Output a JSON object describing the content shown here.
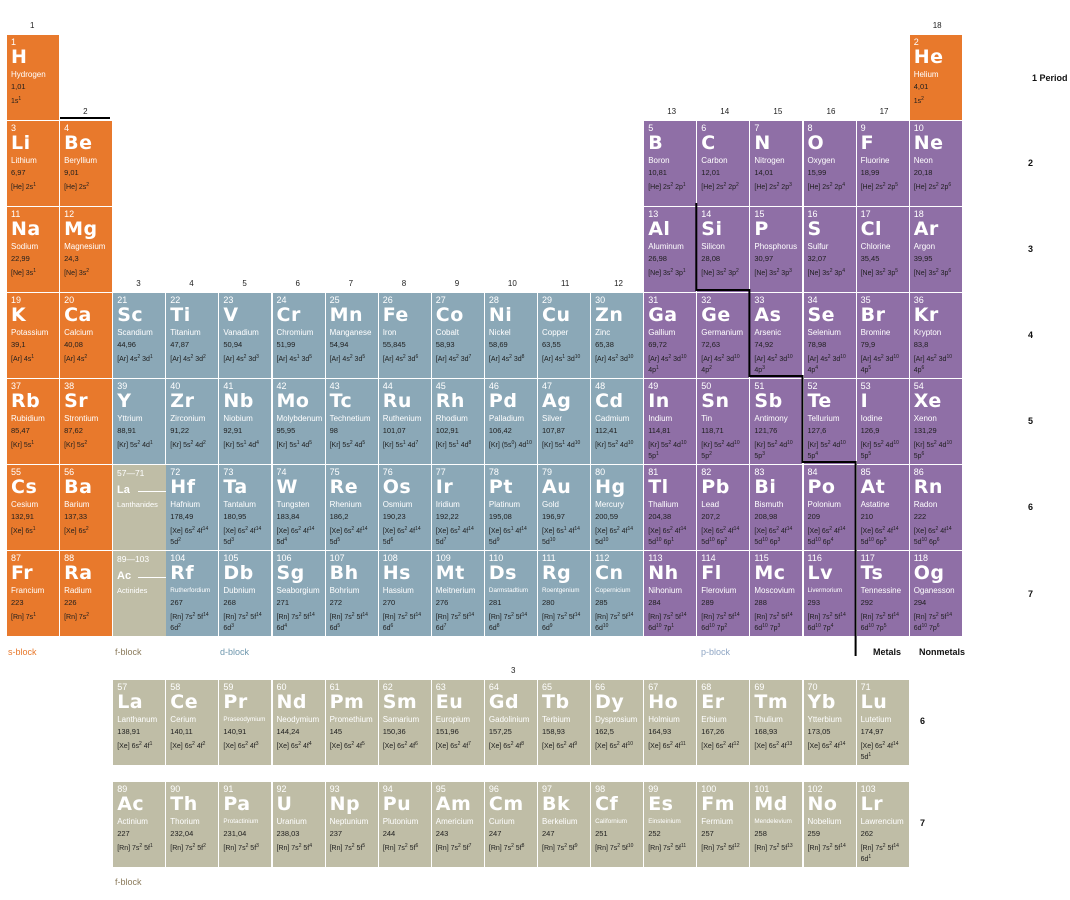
{
  "colors": {
    "s-block": "#e8792c",
    "d-block": "#8ba8b7",
    "p-block": "#8f6fa6",
    "f-block": "#bfbda6"
  },
  "group_labels": [
    "1",
    "2",
    "3",
    "4",
    "5",
    "6",
    "7",
    "8",
    "9",
    "10",
    "11",
    "12",
    "13",
    "14",
    "15",
    "16",
    "17",
    "18"
  ],
  "period_labels": [
    "1 Period",
    "2",
    "3",
    "4",
    "5",
    "6",
    "7"
  ],
  "f_period_labels": [
    "6",
    "7"
  ],
  "f_group_label": "3",
  "block_labels": {
    "s": "s-block",
    "f": "f-block",
    "d": "d-block",
    "p": "p-block",
    "f2": "f-block"
  },
  "metals_label": "Metals",
  "nonmetals_label": "Nonmetals",
  "series": {
    "lanthanides": {
      "range": "57—71",
      "from": "La",
      "to": "Lu",
      "name": "Lanthanides"
    },
    "actinides": {
      "range": "89—103",
      "from": "Ac",
      "to": "Lr",
      "name": "Actinides"
    }
  },
  "elements": [
    [
      "1",
      "H",
      "Hydrogen",
      "1,01",
      "1s^1^",
      "s",
      1,
      1
    ],
    [
      "2",
      "He",
      "Helium",
      "4,01",
      "1s^2^",
      "s",
      18,
      1
    ],
    [
      "3",
      "Li",
      "Lithium",
      "6,97",
      "[He] 2s^1^",
      "s",
      1,
      2
    ],
    [
      "4",
      "Be",
      "Beryllium",
      "9,01",
      "[He] 2s^2^",
      "s",
      2,
      2
    ],
    [
      "5",
      "B",
      "Boron",
      "10,81",
      "[He] 2s^2^ 2p^1^",
      "p",
      13,
      2
    ],
    [
      "6",
      "C",
      "Carbon",
      "12,01",
      "[He] 2s^2^ 2p^2^",
      "p",
      14,
      2
    ],
    [
      "7",
      "N",
      "Nitrogen",
      "14,01",
      "[He] 2s^2^ 2p^3^",
      "p",
      15,
      2
    ],
    [
      "8",
      "O",
      "Oxygen",
      "15,99",
      "[He] 2s^2^ 2p^4^",
      "p",
      16,
      2
    ],
    [
      "9",
      "F",
      "Fluorine",
      "18,99",
      "[He] 2s^2^ 2p^5^",
      "p",
      17,
      2
    ],
    [
      "10",
      "Ne",
      "Neon",
      "20,18",
      "[He] 2s^2^ 2p^6^",
      "p",
      18,
      2
    ],
    [
      "11",
      "Na",
      "Sodium",
      "22,99",
      "[Ne] 3s^1^",
      "s",
      1,
      3
    ],
    [
      "12",
      "Mg",
      "Magnesium",
      "24,3",
      "[Ne] 3s^2^",
      "s",
      2,
      3
    ],
    [
      "13",
      "Al",
      "Aluminum",
      "26,98",
      "[Ne] 3s^2^ 3p^1^",
      "p",
      13,
      3
    ],
    [
      "14",
      "Si",
      "Silicon",
      "28,08",
      "[Ne] 3s^2^ 3p^2^",
      "p",
      14,
      3
    ],
    [
      "15",
      "P",
      "Phosphorus",
      "30,97",
      "[Ne] 3s^2^ 3p^3^",
      "p",
      15,
      3
    ],
    [
      "16",
      "S",
      "Sulfur",
      "32,07",
      "[Ne] 3s^2^ 3p^4^",
      "p",
      16,
      3
    ],
    [
      "17",
      "Cl",
      "Chlorine",
      "35,45",
      "[Ne] 3s^2^ 3p^5^",
      "p",
      17,
      3
    ],
    [
      "18",
      "Ar",
      "Argon",
      "39,95",
      "[Ne] 3s^2^ 3p^6^",
      "p",
      18,
      3
    ],
    [
      "19",
      "K",
      "Potassium",
      "39,1",
      "[Ar] 4s^1^",
      "s",
      1,
      4
    ],
    [
      "20",
      "Ca",
      "Calcium",
      "40,08",
      "[Ar] 4s^2^",
      "s",
      2,
      4
    ],
    [
      "21",
      "Sc",
      "Scandium",
      "44,96",
      "[Ar] 4s^2^ 3d^1^",
      "d",
      3,
      4
    ],
    [
      "22",
      "Ti",
      "Titanium",
      "47,87",
      "[Ar] 4s^2^ 3d^2^",
      "d",
      4,
      4
    ],
    [
      "23",
      "V",
      "Vanadium",
      "50,94",
      "[Ar] 4s^2^ 3d^3^",
      "d",
      5,
      4
    ],
    [
      "24",
      "Cr",
      "Chromium",
      "51,99",
      "[Ar] 4s^1^ 3d^5^",
      "d",
      6,
      4
    ],
    [
      "25",
      "Mn",
      "Manganese",
      "54,94",
      "[Ar] 4s^2^ 3d^5^",
      "d",
      7,
      4
    ],
    [
      "26",
      "Fe",
      "Iron",
      "55,845",
      "[Ar] 4s^2^ 3d^6^",
      "d",
      8,
      4
    ],
    [
      "27",
      "Co",
      "Cobalt",
      "58,93",
      "[Ar] 4s^2^ 3d^7^",
      "d",
      9,
      4
    ],
    [
      "28",
      "Ni",
      "Nickel",
      "58,69",
      "[Ar] 4s^2^ 3d^8^",
      "d",
      10,
      4
    ],
    [
      "29",
      "Cu",
      "Copper",
      "63,55",
      "[Ar] 4s^1^ 3d^10^",
      "d",
      11,
      4
    ],
    [
      "30",
      "Zn",
      "Zinc",
      "65,38",
      "[Ar] 4s^2^ 3d^10^",
      "d",
      12,
      4
    ],
    [
      "31",
      "Ga",
      "Gallium",
      "69,72",
      "[Ar] 4s^2^ 3d^10^|4p^1^",
      "p",
      13,
      4
    ],
    [
      "32",
      "Ge",
      "Germanium",
      "72,63",
      "[Ar] 4s^2^ 3d^10^|4p^2^",
      "p",
      14,
      4
    ],
    [
      "33",
      "As",
      "Arsenic",
      "74,92",
      "[Ar] 4s^2^ 3d^10^|4p^3^",
      "p",
      15,
      4
    ],
    [
      "34",
      "Se",
      "Selenium",
      "78,98",
      "[Ar] 4s^2^ 3d^10^|4p^4^",
      "p",
      16,
      4
    ],
    [
      "35",
      "Br",
      "Bromine",
      "79,9",
      "[Ar] 4s^2^ 3d^10^|4p^5^",
      "p",
      17,
      4
    ],
    [
      "36",
      "Kr",
      "Krypton",
      "83,8",
      "[Ar] 4s^2^ 3d^10^|4p^6^",
      "p",
      18,
      4
    ],
    [
      "37",
      "Rb",
      "Rubidium",
      "85,47",
      "[Kr] 5s^1^",
      "s",
      1,
      5
    ],
    [
      "38",
      "Sr",
      "Strontium",
      "87,62",
      "[Kr] 5s^2^",
      "s",
      2,
      5
    ],
    [
      "39",
      "Y",
      "Yttrium",
      "88,91",
      "[Kr] 5s^2^ 4d^1^",
      "d",
      3,
      5
    ],
    [
      "40",
      "Zr",
      "Zirconium",
      "91,22",
      "[Kr] 5s^2^ 4d^2^",
      "d",
      4,
      5
    ],
    [
      "41",
      "Nb",
      "Niobium",
      "92,91",
      "[Kr] 5s^1^ 4d^4^",
      "d",
      5,
      5
    ],
    [
      "42",
      "Mo",
      "Molybdenum",
      "95,95",
      "[Kr] 5s^1^ 4d^5^",
      "d",
      6,
      5
    ],
    [
      "43",
      "Tc",
      "Technetium",
      "98",
      "[Kr] 5s^2^ 4d^5^",
      "d",
      7,
      5
    ],
    [
      "44",
      "Ru",
      "Ruthenium",
      "101,07",
      "[Kr] 5s^1^ 4d^7^",
      "d",
      8,
      5
    ],
    [
      "45",
      "Rh",
      "Rhodium",
      "102,91",
      "[Kr] 5s^1^ 4d^8^",
      "d",
      9,
      5
    ],
    [
      "46",
      "Pd",
      "Palladium",
      "106,42",
      "[Kr] (5s^0^) 4d^10^",
      "d",
      10,
      5
    ],
    [
      "47",
      "Ag",
      "Silver",
      "107,87",
      "[Kr] 5s^1^ 4d^10^",
      "d",
      11,
      5
    ],
    [
      "48",
      "Cd",
      "Cadmium",
      "112,41",
      "[Kr] 5s^2^ 4d^10^",
      "d",
      12,
      5
    ],
    [
      "49",
      "In",
      "Indium",
      "114,81",
      "[Kr] 5s^2^ 4d^10^|5p^1^",
      "p",
      13,
      5
    ],
    [
      "50",
      "Sn",
      "Tin",
      "118,71",
      "[Kr] 5s^2^ 4d^10^|5p^2^",
      "p",
      14,
      5
    ],
    [
      "51",
      "Sb",
      "Antimony",
      "121,76",
      "[Kr] 5s^2^ 4d^10^|5p^3^",
      "p",
      15,
      5
    ],
    [
      "52",
      "Te",
      "Tellurium",
      "127,6",
      "[Kr] 5s^2^ 4d^10^|5p^4^",
      "p",
      16,
      5
    ],
    [
      "53",
      "I",
      "Iodine",
      "126,9",
      "[Kr] 5s^2^ 4d^10^|5p^5^",
      "p",
      17,
      5
    ],
    [
      "54",
      "Xe",
      "Xenon",
      "131,29",
      "[Kr] 5s^2^ 4d^10^|5p^6^",
      "p",
      18,
      5
    ],
    [
      "55",
      "Cs",
      "Cesium",
      "132,91",
      "[Xe] 6s^1^",
      "s",
      1,
      6
    ],
    [
      "56",
      "Ba",
      "Barium",
      "137,33",
      "[Xe] 6s^2^",
      "s",
      2,
      6
    ],
    [
      "72",
      "Hf",
      "Hafnium",
      "178,49",
      "[Xe] 6s^2^ 4f^14^|5d^2^",
      "d",
      4,
      6
    ],
    [
      "73",
      "Ta",
      "Tantalum",
      "180,95",
      "[Xe] 6s^2^ 4f^14^|5d^3^",
      "d",
      5,
      6
    ],
    [
      "74",
      "W",
      "Tungsten",
      "183,84",
      "[Xe] 6s^2^ 4f^14^|5d^4^",
      "d",
      6,
      6
    ],
    [
      "75",
      "Re",
      "Rhenium",
      "186,2",
      "[Xe] 6s^2^ 4f^14^|5d^5^",
      "d",
      7,
      6
    ],
    [
      "76",
      "Os",
      "Osmium",
      "190,23",
      "[Xe] 6s^2^ 4f^14^|5d^6^",
      "d",
      8,
      6
    ],
    [
      "77",
      "Ir",
      "Iridium",
      "192,22",
      "[Xe] 6s^2^ 4f^14^|5d^7^",
      "d",
      9,
      6
    ],
    [
      "78",
      "Pt",
      "Platinum",
      "195,08",
      "[Xe] 6s^1^ 4f^14^|5d^9^",
      "d",
      10,
      6
    ],
    [
      "79",
      "Au",
      "Gold",
      "196,97",
      "[Xe] 6s^1^ 4f^14^|5d^10^",
      "d",
      11,
      6
    ],
    [
      "80",
      "Hg",
      "Mercury",
      "200,59",
      "[Xe] 6s^2^ 4f^14^|5d^10^",
      "d",
      12,
      6
    ],
    [
      "81",
      "Tl",
      "Thallium",
      "204,38",
      "[Xe] 6s^2^ 4f^14^|5d^10^ 6p^1^",
      "p",
      13,
      6
    ],
    [
      "82",
      "Pb",
      "Lead",
      "207,2",
      "[Xe] 6s^2^ 4f^14^|5d^10^ 6p^2^",
      "p",
      14,
      6
    ],
    [
      "83",
      "Bi",
      "Bismuth",
      "208,98",
      "[Xe] 6s^2^ 4f^14^|5d^10^ 6p^3^",
      "p",
      15,
      6
    ],
    [
      "84",
      "Po",
      "Polonium",
      "209",
      "[Xe] 6s^2^ 4f^14^|5d^10^ 6p^4^",
      "p",
      16,
      6
    ],
    [
      "85",
      "At",
      "Astatine",
      "210",
      "[Xe] 6s^2^ 4f^14^|5d^10^ 6p^5^",
      "p",
      17,
      6
    ],
    [
      "86",
      "Rn",
      "Radon",
      "222",
      "[Xe] 6s^2^ 4f^14^|5d^10^ 6p^6^",
      "p",
      18,
      6
    ],
    [
      "87",
      "Fr",
      "Francium",
      "223",
      "[Rn] 7s^1^",
      "s",
      1,
      7
    ],
    [
      "88",
      "Ra",
      "Radium",
      "226",
      "[Rn] 7s^2^",
      "s",
      2,
      7
    ],
    [
      "104",
      "Rf",
      "Rutherfordium",
      "267",
      "[Rn] 7s^2^ 5f^14^|6d^2^",
      "d",
      4,
      7
    ],
    [
      "105",
      "Db",
      "Dubnium",
      "268",
      "[Rn] 7s^2^ 5f^14^|6d^3^",
      "d",
      5,
      7
    ],
    [
      "106",
      "Sg",
      "Seaborgium",
      "271",
      "[Rn] 7s^2^ 5f^14^|6d^4^",
      "d",
      6,
      7
    ],
    [
      "107",
      "Bh",
      "Bohrium",
      "272",
      "[Rn] 7s^2^ 5f^14^|6d^5^",
      "d",
      7,
      7
    ],
    [
      "108",
      "Hs",
      "Hassium",
      "270",
      "[Rn] 7s^2^ 5f^14^|6d^6^",
      "d",
      8,
      7
    ],
    [
      "109",
      "Mt",
      "Meitnerium",
      "276",
      "[Rn] 7s^2^ 5f^14^|6d^7^",
      "d",
      9,
      7
    ],
    [
      "110",
      "Ds",
      "Darmstadtium",
      "281",
      "[Rn] 7s^2^ 5f^14^|6d^8^",
      "d",
      10,
      7
    ],
    [
      "111",
      "Rg",
      "Roentgenium",
      "280",
      "[Rn] 7s^2^ 5f^14^|6d^9^",
      "d",
      11,
      7
    ],
    [
      "112",
      "Cn",
      "Copernicium",
      "285",
      "[Rn] 7s^2^ 5f^14^|6d^10^",
      "d",
      12,
      7
    ],
    [
      "113",
      "Nh",
      "Nihonium",
      "284",
      "[Rn] 7s^2^ 5f^14^|6d^10^ 7p^1^",
      "p",
      13,
      7
    ],
    [
      "114",
      "Fl",
      "Flerovium",
      "289",
      "[Rn] 7s^2^ 5f^14^|6d^10^ 7p^2^",
      "p",
      14,
      7
    ],
    [
      "115",
      "Mc",
      "Moscovium",
      "288",
      "[Rn] 7s^2^ 5f^14^|6d^10^ 7p^3^",
      "p",
      15,
      7
    ],
    [
      "116",
      "Lv",
      "Livermorium",
      "293",
      "[Rn] 7s^2^ 5f^14^|6d^10^ 7p^4^",
      "p",
      16,
      7
    ],
    [
      "117",
      "Ts",
      "Tennessine",
      "292",
      "[Rn] 7s^2^ 5f^14^|6d^10^ 7p^5^",
      "p",
      17,
      7
    ],
    [
      "118",
      "Og",
      "Oganesson",
      "294",
      "[Rn] 7s^2^ 5f^14^|6d^10^ 7p^6^",
      "p",
      18,
      7
    ],
    [
      "57",
      "La",
      "Lanthanum",
      "138,91",
      "[Xe] 6s^2^ 4f^1^",
      "f",
      3,
      9
    ],
    [
      "58",
      "Ce",
      "Cerium",
      "140,11",
      "[Xe] 6s^2^ 4f^2^",
      "f",
      4,
      9
    ],
    [
      "59",
      "Pr",
      "Praseodymium",
      "140,91",
      "[Xe] 6s^2^ 4f^3^",
      "f",
      5,
      9
    ],
    [
      "60",
      "Nd",
      "Neodymium",
      "144,24",
      "[Xe] 6s^2^ 4f^4^",
      "f",
      6,
      9
    ],
    [
      "61",
      "Pm",
      "Promethium",
      "145",
      "[Xe] 6s^2^ 4f^5^",
      "f",
      7,
      9
    ],
    [
      "62",
      "Sm",
      "Samarium",
      "150,36",
      "[Xe] 6s^2^ 4f^6^",
      "f",
      8,
      9
    ],
    [
      "63",
      "Eu",
      "Europium",
      "151,96",
      "[Xe] 6s^2^ 4f^7^",
      "f",
      9,
      9
    ],
    [
      "64",
      "Gd",
      "Gadolinium",
      "157,25",
      "[Xe] 6s^2^ 4f^8^",
      "f",
      10,
      9
    ],
    [
      "65",
      "Tb",
      "Terbium",
      "158,93",
      "[Xe] 6s^2^ 4f^9^",
      "f",
      11,
      9
    ],
    [
      "66",
      "Dy",
      "Dysprosium",
      "162,5",
      "[Xe] 6s^2^ 4f^10^",
      "f",
      12,
      9
    ],
    [
      "67",
      "Ho",
      "Holmium",
      "164,93",
      "[Xe] 6s^2^ 4f^11^",
      "f",
      13,
      9
    ],
    [
      "68",
      "Er",
      "Erbium",
      "167,26",
      "[Xe] 6s^2^ 4f^12^",
      "f",
      14,
      9
    ],
    [
      "69",
      "Tm",
      "Thulium",
      "168,93",
      "[Xe] 6s^2^ 4f^13^",
      "f",
      15,
      9
    ],
    [
      "70",
      "Yb",
      "Ytterbium",
      "173,05",
      "[Xe] 6s^2^ 4f^14^",
      "f",
      16,
      9
    ],
    [
      "71",
      "Lu",
      "Lutetium",
      "174,97",
      "[Xe] 6s^2^ 4f^14^|5d^1^",
      "f",
      17,
      9
    ],
    [
      "89",
      "Ac",
      "Actinium",
      "227",
      "[Rn] 7s^2^ 5f^1^",
      "f",
      3,
      10
    ],
    [
      "90",
      "Th",
      "Thorium",
      "232,04",
      "[Rn] 7s^2^ 5f^2^",
      "f",
      4,
      10
    ],
    [
      "91",
      "Pa",
      "Protactinium",
      "231,04",
      "[Rn] 7s^2^ 5f^3^",
      "f",
      5,
      10
    ],
    [
      "92",
      "U",
      "Uranium",
      "238,03",
      "[Rn] 7s^2^ 5f^4^",
      "f",
      6,
      10
    ],
    [
      "93",
      "Np",
      "Neptunium",
      "237",
      "[Rn] 7s^2^ 5f^5^",
      "f",
      7,
      10
    ],
    [
      "94",
      "Pu",
      "Plutonium",
      "244",
      "[Rn] 7s^2^ 5f^6^",
      "f",
      8,
      10
    ],
    [
      "95",
      "Am",
      "Americium",
      "243",
      "[Rn] 7s^2^ 5f^7^",
      "f",
      9,
      10
    ],
    [
      "96",
      "Cm",
      "Curium",
      "247",
      "[Rn] 7s^2^ 5f^8^",
      "f",
      10,
      10
    ],
    [
      "97",
      "Bk",
      "Berkelium",
      "247",
      "[Rn] 7s^2^ 5f^9^",
      "f",
      11,
      10
    ],
    [
      "98",
      "Cf",
      "Californium",
      "251",
      "[Rn] 7s^2^ 5f^10^",
      "f",
      12,
      10
    ],
    [
      "99",
      "Es",
      "Einsteinium",
      "252",
      "[Rn] 7s^2^ 5f^11^",
      "f",
      13,
      10
    ],
    [
      "100",
      "Fm",
      "Fermium",
      "257",
      "[Rn] 7s^2^ 5f^12^",
      "f",
      14,
      10
    ],
    [
      "101",
      "Md",
      "Mendelevium",
      "258",
      "[Rn] 7s^2^ 5f^13^",
      "f",
      15,
      10
    ],
    [
      "102",
      "No",
      "Nobelium",
      "259",
      "[Rn] 7s^2^ 5f^14^",
      "f",
      16,
      10
    ],
    [
      "103",
      "Lr",
      "Lawrencium",
      "262",
      "[Rn] 7s^2^ 5f^14^|6d^1^",
      "f",
      17,
      10
    ]
  ]
}
